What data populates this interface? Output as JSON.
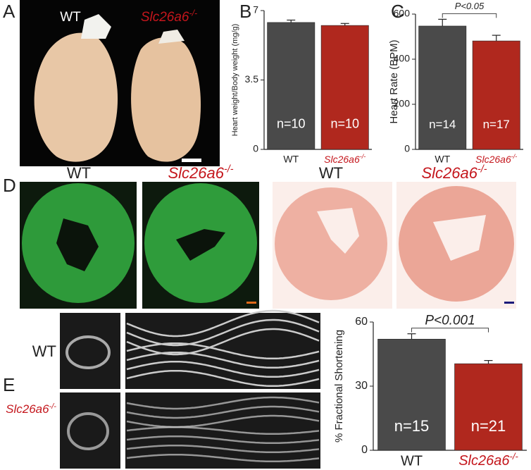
{
  "panel_labels": [
    "A",
    "B",
    "C",
    "D",
    "E"
  ],
  "figure_a": {
    "labels": [
      "WT",
      "Slc26a6-/-"
    ]
  },
  "figure_d": {
    "labels": [
      "WT",
      "Slc26a6-/-",
      "WT",
      "Slc26a6-/-"
    ]
  },
  "figure_e": {
    "labels": [
      "WT",
      "Slc26a6-/-"
    ]
  },
  "chart_data": [
    {
      "type": "bar",
      "ylabel": "Heart weight/Body weight (mg/g)",
      "categories": [
        "WT",
        "Slc26a6-/-"
      ],
      "values": [
        6.4,
        6.25
      ],
      "errors": [
        0.12,
        0.1
      ],
      "colors": [
        "#4a4a4a",
        "#b0281e"
      ],
      "annotations": [
        "n=10",
        "n=10"
      ],
      "ylim": [
        0,
        7
      ],
      "yticks": [
        0,
        3.5,
        7
      ]
    },
    {
      "type": "bar",
      "ylabel": "Heart Rate (BPM)",
      "categories": [
        "WT",
        "Slc26a6-/-"
      ],
      "values": [
        547,
        481
      ],
      "errors": [
        30,
        25
      ],
      "colors": [
        "#4a4a4a",
        "#b0281e"
      ],
      "annotations": [
        "n=14",
        "n=17"
      ],
      "ylim": [
        0,
        600
      ],
      "yticks": [
        0,
        200,
        400,
        600
      ],
      "significance": "P<0.05"
    },
    {
      "type": "bar",
      "ylabel": "% Fractional Shortening",
      "categories": [
        "WT",
        "Slc26a6-/-"
      ],
      "values": [
        52,
        40.5
      ],
      "errors": [
        2.5,
        1.5
      ],
      "colors": [
        "#4a4a4a",
        "#b0281e"
      ],
      "annotations": [
        "n=15",
        "n=21"
      ],
      "ylim": [
        0,
        60
      ],
      "yticks": [
        0,
        30,
        60
      ],
      "significance": "P<0.001"
    }
  ]
}
